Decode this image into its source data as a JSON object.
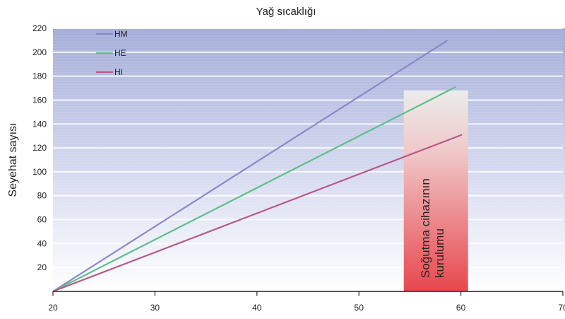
{
  "chart_data": {
    "type": "line",
    "title": "Yağ sıcaklığı",
    "xlabel": "",
    "ylabel": "Seyehat sayısı",
    "xlim": [
      20,
      70
    ],
    "ylim": [
      0,
      220
    ],
    "x_ticks": [
      "20",
      "30",
      "40",
      "50",
      "60",
      "70"
    ],
    "y_ticks": [
      "20",
      "40",
      "60",
      "80",
      "100",
      "120",
      "140",
      "160",
      "180",
      "200",
      "220"
    ],
    "grid": true,
    "legend_position": "top-left",
    "series": [
      {
        "name": "HM",
        "color": "#8a88c8",
        "x": [
          20,
          58.7
        ],
        "y": [
          0,
          210
        ]
      },
      {
        "name": "HE",
        "color": "#5fbf8a",
        "x": [
          20,
          59.5
        ],
        "y": [
          0,
          171
        ]
      },
      {
        "name": "HI",
        "color": "#b85a8a",
        "x": [
          20,
          60.1
        ],
        "y": [
          0,
          131
        ]
      }
    ],
    "annotation": {
      "text_line1": "Soğutma cihazının",
      "text_line2": "kurulumu",
      "x_range": [
        54.4,
        60.7
      ],
      "y_top": 168
    },
    "colors": {
      "background_top": "#a3acd8",
      "background_bottom": "#ffffff",
      "annotation_top": "#ececec",
      "annotation_bottom": "#e8474e"
    }
  }
}
